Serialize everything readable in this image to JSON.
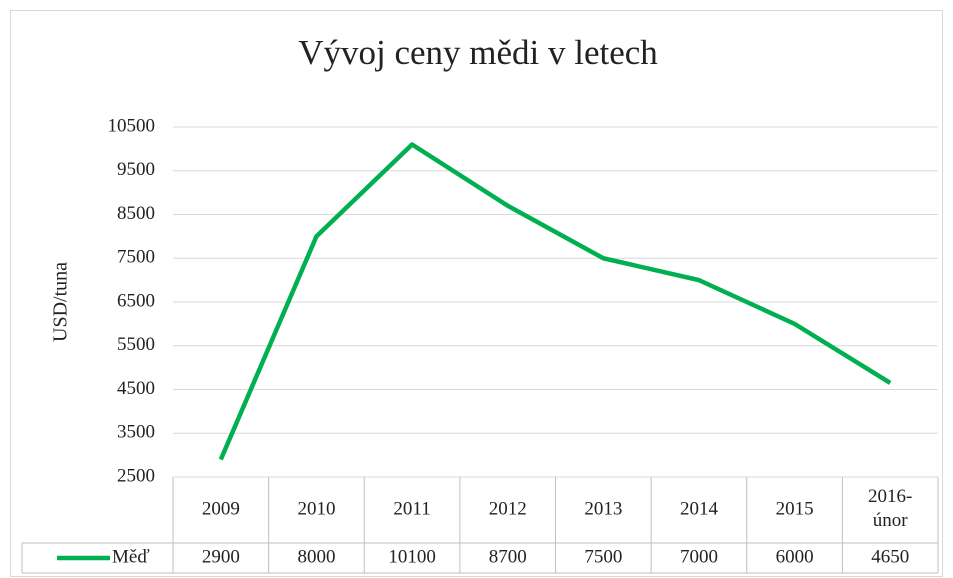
{
  "chart_data": {
    "type": "line",
    "title": "Vývoj ceny mědi v letech",
    "ylabel": "USD/tuna",
    "categories": [
      "2009",
      "2010",
      "2011",
      "2012",
      "2013",
      "2014",
      "2015",
      "2016-únor"
    ],
    "series": [
      {
        "name": "Měď",
        "color": "#00b050",
        "values": [
          2900,
          8000,
          10100,
          8700,
          7500,
          7000,
          6000,
          4650
        ]
      }
    ],
    "ylim": [
      2500,
      10500
    ],
    "yticks": [
      2500,
      3500,
      4500,
      5500,
      6500,
      7500,
      8500,
      9500,
      10500
    ],
    "grid": true,
    "data_table": true
  }
}
